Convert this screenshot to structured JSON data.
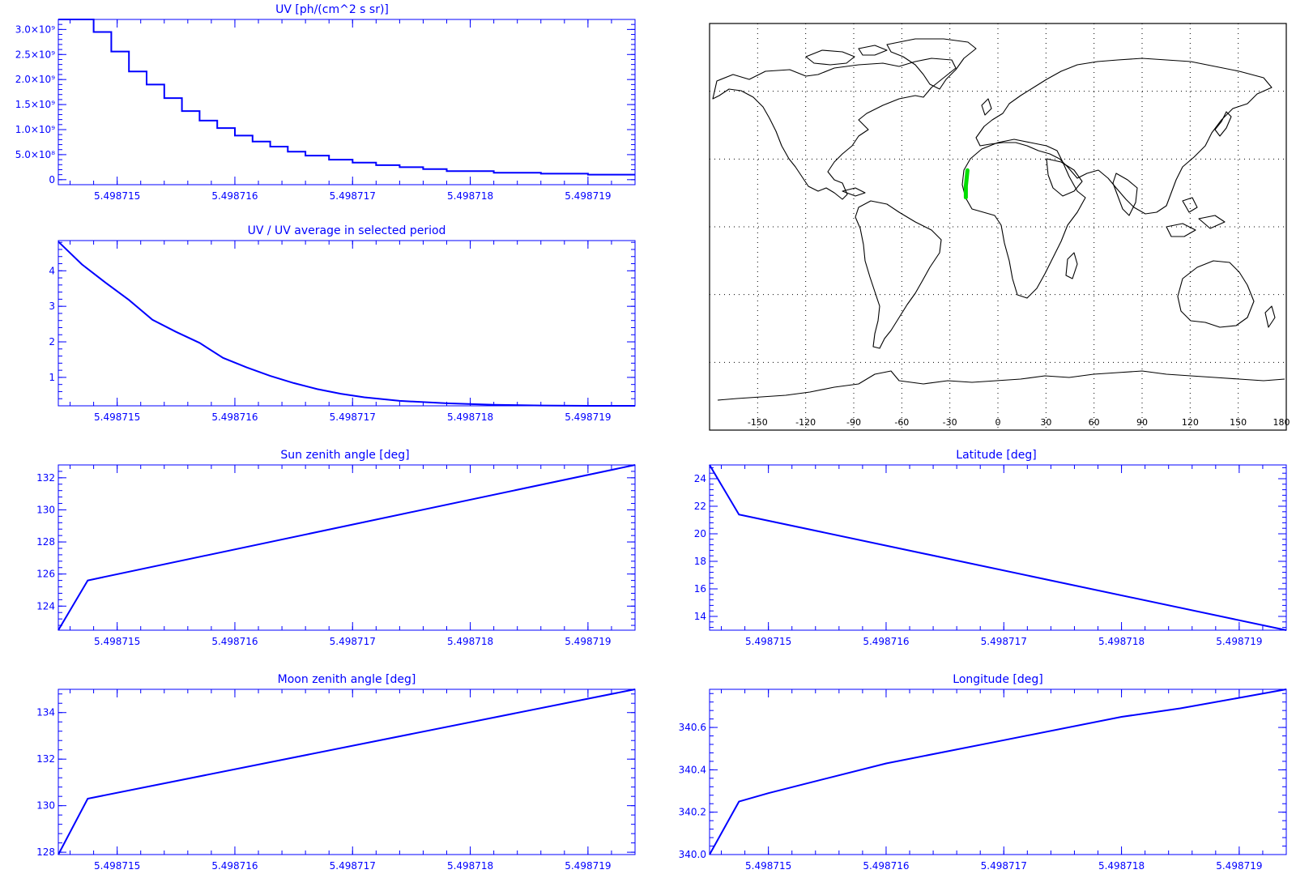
{
  "colors": {
    "plot": "#0000ff",
    "map_frame": "#000000",
    "map_track": "#00dd00"
  },
  "chart_data": [
    {
      "id": "uv",
      "type": "line",
      "step": true,
      "title": "UV [ph/(cm^2 s sr)]",
      "xlim": [
        5.4987145,
        5.4987194
      ],
      "ylim": [
        -100000000,
        3200000000
      ],
      "x_ticks": [
        "5.498715",
        "5.498716",
        "5.498717",
        "5.498718",
        "5.498719"
      ],
      "x_tick_values": [
        5.498715,
        5.498716,
        5.498717,
        5.498718,
        5.498719
      ],
      "y_ticks": [
        "3.0×10⁹",
        "2.5×10⁹",
        "2.0×10⁹",
        "1.5×10⁹",
        "1.0×10⁹",
        "5.0×10⁸",
        "0"
      ],
      "y_tick_values": [
        3000000000,
        2500000000,
        2000000000,
        1500000000,
        1000000000,
        500000000,
        0
      ],
      "x": [
        5.4987145,
        5.4987148,
        5.49871495,
        5.4987151,
        5.49871525,
        5.4987154,
        5.49871555,
        5.4987157,
        5.49871585,
        5.498716,
        5.49871615,
        5.4987163,
        5.49871645,
        5.4987166,
        5.4987168,
        5.498717,
        5.4987172,
        5.4987174,
        5.4987176,
        5.4987178,
        5.4987182,
        5.4987186,
        5.498719,
        5.4987194
      ],
      "values": [
        3200000000,
        2950000000,
        2560000000,
        2160000000,
        1900000000,
        1630000000,
        1370000000,
        1180000000,
        1030000000,
        880000000,
        760000000,
        660000000,
        560000000,
        480000000,
        400000000,
        340000000,
        290000000,
        250000000,
        210000000,
        170000000,
        140000000,
        120000000,
        100000000,
        100000000
      ]
    },
    {
      "id": "uv_ratio",
      "type": "line",
      "title": "UV / UV average in selected period",
      "xlim": [
        5.4987145,
        5.4987194
      ],
      "ylim": [
        0.2,
        4.85
      ],
      "x_ticks": [
        "5.498715",
        "5.498716",
        "5.498717",
        "5.498718",
        "5.498719"
      ],
      "x_tick_values": [
        5.498715,
        5.498716,
        5.498717,
        5.498718,
        5.498719
      ],
      "y_ticks": [
        "4",
        "3",
        "2",
        "1"
      ],
      "y_tick_values": [
        4,
        3,
        2,
        1
      ],
      "x": [
        5.4987145,
        5.4987147,
        5.4987149,
        5.4987151,
        5.4987153,
        5.4987155,
        5.4987157,
        5.4987159,
        5.4987161,
        5.4987163,
        5.4987165,
        5.4987167,
        5.4987169,
        5.4987171,
        5.4987174,
        5.4987178,
        5.4987182,
        5.4987186,
        5.498719,
        5.4987194
      ],
      "values": [
        4.82,
        4.18,
        3.67,
        3.18,
        2.62,
        2.28,
        1.97,
        1.55,
        1.28,
        1.04,
        0.84,
        0.67,
        0.54,
        0.44,
        0.34,
        0.27,
        0.23,
        0.21,
        0.2,
        0.2
      ]
    },
    {
      "id": "sun_zenith",
      "type": "line",
      "title": "Sun zenith angle [deg]",
      "xlim": [
        5.4987145,
        5.4987194
      ],
      "ylim": [
        122.5,
        132.8
      ],
      "x_ticks": [
        "5.498715",
        "5.498716",
        "5.498717",
        "5.498718",
        "5.498719"
      ],
      "x_tick_values": [
        5.498715,
        5.498716,
        5.498717,
        5.498718,
        5.498719
      ],
      "y_ticks": [
        "132",
        "130",
        "128",
        "126",
        "124"
      ],
      "y_tick_values": [
        132,
        130,
        128,
        126,
        124
      ],
      "x": [
        5.4987145,
        5.49871475,
        5.4987194
      ],
      "values": [
        122.5,
        125.6,
        132.8
      ]
    },
    {
      "id": "latitude",
      "type": "line",
      "title": "Latitude [deg]",
      "xlim": [
        5.4987145,
        5.4987194
      ],
      "ylim": [
        13.0,
        25.0
      ],
      "x_ticks": [
        "5.498715",
        "5.498716",
        "5.498717",
        "5.498718",
        "5.498719"
      ],
      "x_tick_values": [
        5.498715,
        5.498716,
        5.498717,
        5.498718,
        5.498719
      ],
      "y_ticks": [
        "24",
        "22",
        "20",
        "18",
        "16",
        "14"
      ],
      "y_tick_values": [
        24,
        22,
        20,
        18,
        16,
        14
      ],
      "x": [
        5.4987145,
        5.49871475,
        5.4987194
      ],
      "values": [
        25.0,
        21.4,
        13.0
      ]
    },
    {
      "id": "moon_zenith",
      "type": "line",
      "title": "Moon zenith angle [deg]",
      "xlim": [
        5.4987145,
        5.4987194
      ],
      "ylim": [
        127.9,
        135.0
      ],
      "x_ticks": [
        "5.498715",
        "5.498716",
        "5.498717",
        "5.498718",
        "5.498719"
      ],
      "x_tick_values": [
        5.498715,
        5.498716,
        5.498717,
        5.498718,
        5.498719
      ],
      "y_ticks": [
        "134",
        "132",
        "130",
        "128"
      ],
      "y_tick_values": [
        134,
        132,
        130,
        128
      ],
      "x": [
        5.4987145,
        5.49871475,
        5.4987194
      ],
      "values": [
        127.9,
        130.3,
        135.0
      ]
    },
    {
      "id": "longitude",
      "type": "line",
      "title": "Longitude [deg]",
      "xlim": [
        5.4987145,
        5.4987194
      ],
      "ylim": [
        340.0,
        340.78
      ],
      "x_ticks": [
        "5.498715",
        "5.498716",
        "5.498717",
        "5.498718",
        "5.498719"
      ],
      "x_tick_values": [
        5.498715,
        5.498716,
        5.498717,
        5.498718,
        5.498719
      ],
      "y_ticks": [
        "340.6",
        "340.4",
        "340.2",
        "340.0"
      ],
      "y_tick_values": [
        340.6,
        340.4,
        340.2,
        340.0
      ],
      "x": [
        5.4987145,
        5.49871475,
        5.498715,
        5.4987155,
        5.498716,
        5.498717,
        5.498718,
        5.4987185,
        5.498719,
        5.4987194
      ],
      "values": [
        340.0,
        340.25,
        340.29,
        340.36,
        340.43,
        340.54,
        340.65,
        340.69,
        340.74,
        340.78
      ]
    }
  ],
  "map": {
    "x_ticks": [
      "-150",
      "-120",
      "-90",
      "-60",
      "-30",
      "0",
      "30",
      "60",
      "90",
      "120",
      "150",
      "180"
    ],
    "x_tick_values": [
      -150,
      -120,
      -90,
      -60,
      -30,
      0,
      30,
      60,
      90,
      120,
      150,
      180
    ],
    "track": [
      [
        -19.0,
        25.0
      ],
      [
        -19.5,
        21.4
      ],
      [
        -20.0,
        18.0
      ],
      [
        -20.0,
        13.0
      ]
    ]
  }
}
